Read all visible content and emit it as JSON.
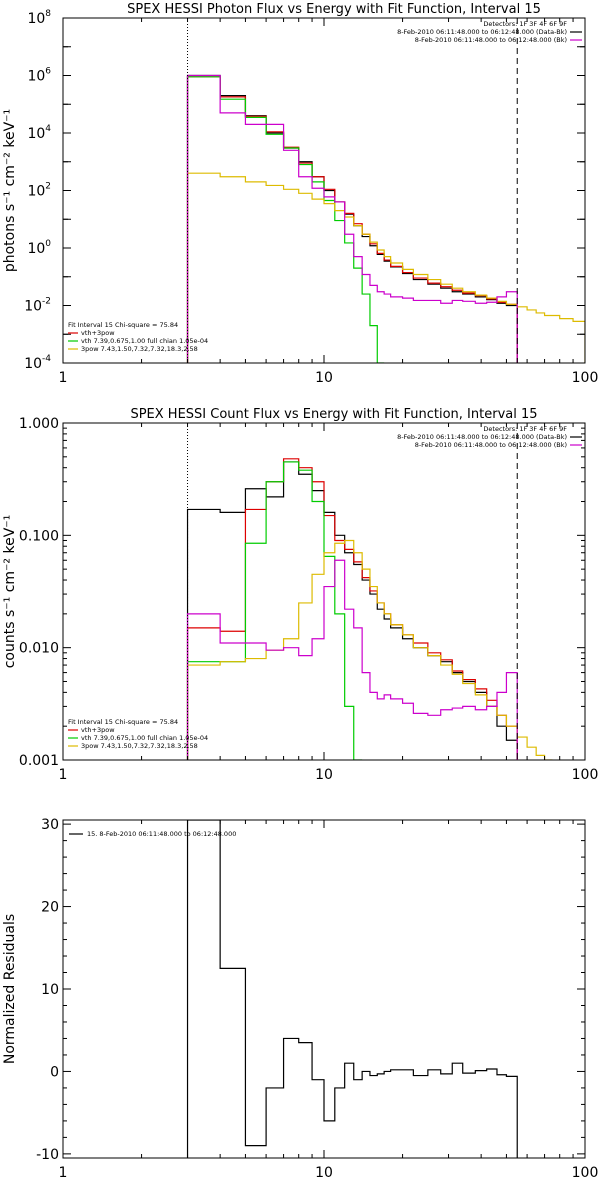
{
  "chart_data": [
    {
      "type": "line",
      "title": "SPEX HESSI Photon Flux vs Energy with Fit Function, Interval 15",
      "ylabel": "photons s⁻¹ cm⁻² keV⁻¹",
      "xlabel": "",
      "x_scale": "log",
      "y_scale": "log",
      "xlim": [
        1,
        100
      ],
      "ylim": [
        0.0001,
        100000000
      ],
      "x_ticks": [
        {
          "v": 1,
          "label": "1"
        },
        {
          "v": 10,
          "label": "10"
        },
        {
          "v": 100,
          "label": "100"
        }
      ],
      "y_ticks": [
        {
          "v": 0.0001,
          "label": "10",
          "exp": "-4"
        },
        {
          "v": 0.01,
          "label": "10",
          "exp": "-2"
        },
        {
          "v": 1,
          "label": "10",
          "exp": "0"
        },
        {
          "v": 100,
          "label": "10",
          "exp": "2"
        },
        {
          "v": 10000,
          "label": "10",
          "exp": "4"
        },
        {
          "v": 1000000,
          "label": "10",
          "exp": "6"
        },
        {
          "v": 100000000,
          "label": "10",
          "exp": "8"
        }
      ],
      "vlines": [
        {
          "x": 3.0,
          "style": "dotted"
        },
        {
          "x": 55,
          "style": "dashed"
        }
      ],
      "legend_top": [
        {
          "text": "Detectors: 1F 3F 4F 6F 9F",
          "color": ""
        },
        {
          "text": "8-Feb-2010 06:11:48.000 to 06:12:48.000 (Data-Bk)",
          "color": "#000000"
        },
        {
          "text": "8-Feb-2010 06:11:48.000 to 06:12:48.000 (Bk)",
          "color": "#cc00cc"
        }
      ],
      "legend_bottom": [
        {
          "text": "Fit Interval 15   Chi-square = 75.84",
          "color": ""
        },
        {
          "text": "vth+3pow",
          "color": "#dd0000"
        },
        {
          "text": "vth 7.39,0.675,1.00  full chian 1.05e-04",
          "color": "#00cc00"
        },
        {
          "text": "3pow 7.43,1.50,7.32,7.32,18.3,2.58",
          "color": "#ddbb00"
        }
      ],
      "series": [
        {
          "color": "#000000",
          "edges": [
            3,
            4,
            5,
            6,
            7,
            8,
            9,
            10,
            11,
            12,
            13,
            14,
            15,
            16,
            17,
            18,
            20,
            22,
            25,
            28,
            31,
            34,
            38,
            42,
            46,
            50,
            55
          ],
          "values": [
            1000000,
            200000,
            40000,
            10000,
            3000,
            1000,
            300,
            100,
            40,
            15,
            6,
            2.5,
            1.2,
            0.6,
            0.35,
            0.22,
            0.13,
            0.08,
            0.055,
            0.04,
            0.03,
            0.025,
            0.02,
            0.016,
            0.012,
            0.01
          ]
        },
        {
          "color": "#dd0000",
          "edges": [
            3,
            4,
            5,
            6,
            7,
            8,
            9,
            10,
            11,
            12,
            13,
            14,
            15,
            16,
            17,
            18,
            20,
            22,
            25,
            28,
            31,
            34,
            38,
            42,
            46,
            50,
            55
          ],
          "values": [
            900000,
            180000,
            38000,
            11000,
            3200,
            900,
            300,
            110,
            40,
            16,
            7,
            3,
            1.4,
            0.65,
            0.38,
            0.23,
            0.14,
            0.09,
            0.06,
            0.045,
            0.034,
            0.027,
            0.022,
            0.017,
            0.013,
            0.011
          ]
        },
        {
          "color": "#00cc00",
          "edges": [
            3,
            4,
            5,
            6,
            7,
            8,
            9,
            10,
            11,
            12,
            13,
            14,
            15,
            16,
            17
          ],
          "values": [
            900000,
            150000,
            35000,
            9000,
            3000,
            800,
            200,
            45,
            9,
            1.5,
            0.2,
            0.025,
            0.002,
            0.0001
          ]
        },
        {
          "color": "#ddbb00",
          "edges": [
            3,
            4,
            5,
            6,
            7,
            8,
            9,
            10,
            11,
            12,
            13,
            14,
            15,
            16,
            17,
            18,
            20,
            22,
            25,
            28,
            31,
            34,
            38,
            42,
            46,
            50,
            55,
            60,
            65,
            70,
            80,
            90,
            100
          ],
          "values": [
            400,
            300,
            200,
            150,
            110,
            80,
            50,
            35,
            20,
            12,
            6,
            3,
            1.6,
            0.85,
            0.5,
            0.3,
            0.18,
            0.12,
            0.08,
            0.055,
            0.04,
            0.03,
            0.023,
            0.018,
            0.014,
            0.011,
            0.009,
            0.007,
            0.0055,
            0.0045,
            0.0035,
            0.0028
          ]
        },
        {
          "color": "#cc00cc",
          "edges": [
            3,
            4,
            5,
            6,
            7,
            8,
            9,
            10,
            11,
            12,
            13,
            14,
            15,
            16,
            17,
            18,
            20,
            22,
            25,
            28,
            31,
            34,
            38,
            42,
            46,
            50,
            55
          ],
          "values": [
            1000000,
            50000,
            20000,
            20000,
            2500,
            300,
            120,
            60,
            40,
            3,
            0.5,
            0.12,
            0.05,
            0.03,
            0.025,
            0.02,
            0.018,
            0.015,
            0.015,
            0.012,
            0.015,
            0.014,
            0.012,
            0.013,
            0.02,
            0.03
          ]
        }
      ]
    },
    {
      "type": "line",
      "title": "SPEX HESSI Count Flux vs Energy with Fit Function, Interval 15",
      "ylabel": "counts s⁻¹ cm⁻² keV⁻¹",
      "xlabel": "",
      "x_scale": "log",
      "y_scale": "log",
      "xlim": [
        1,
        100
      ],
      "ylim": [
        0.001,
        1.0
      ],
      "x_ticks": [
        {
          "v": 1,
          "label": "1"
        },
        {
          "v": 10,
          "label": "10"
        },
        {
          "v": 100,
          "label": "100"
        }
      ],
      "y_ticks": [
        {
          "v": 0.001,
          "label": "0.001",
          "exp": ""
        },
        {
          "v": 0.01,
          "label": "0.010",
          "exp": ""
        },
        {
          "v": 0.1,
          "label": "0.100",
          "exp": ""
        },
        {
          "v": 1.0,
          "label": "1.000",
          "exp": ""
        }
      ],
      "vlines": [
        {
          "x": 3.0,
          "style": "dotted"
        },
        {
          "x": 55,
          "style": "dashed"
        }
      ],
      "legend_top": [
        {
          "text": "Detectors: 1F 3F 4F 6F 9F",
          "color": ""
        },
        {
          "text": "8-Feb-2010 06:11:48.000 to 06:12:48.000 (Data-Bk)",
          "color": "#000000"
        },
        {
          "text": "8-Feb-2010 06:11:48.000 to 06:12:48.000 (Bk)",
          "color": "#cc00cc"
        }
      ],
      "legend_bottom": [
        {
          "text": "Fit Interval 15   Chi-square = 75.84",
          "color": ""
        },
        {
          "text": "vth+3pow",
          "color": "#dd0000"
        },
        {
          "text": "vth 7.39,0.675,1.00  full chian 1.05e-04",
          "color": "#00cc00"
        },
        {
          "text": "3pow 7.43,1.50,7.32,7.32,18.3,2.58",
          "color": "#ddbb00"
        }
      ],
      "series": [
        {
          "color": "#000000",
          "edges": [
            3,
            4,
            5,
            6,
            7,
            8,
            9,
            10,
            11,
            12,
            13,
            14,
            15,
            16,
            17,
            18,
            20,
            22,
            25,
            28,
            31,
            34,
            38,
            42,
            46,
            50,
            55
          ],
          "values": [
            0.17,
            0.16,
            0.26,
            0.22,
            0.45,
            0.35,
            0.25,
            0.16,
            0.1,
            0.07,
            0.055,
            0.04,
            0.03,
            0.022,
            0.018,
            0.015,
            0.012,
            0.01,
            0.0085,
            0.0075,
            0.006,
            0.005,
            0.004,
            0.003,
            0.002,
            0.0015
          ]
        },
        {
          "color": "#dd0000",
          "edges": [
            3,
            4,
            5,
            6,
            7,
            8,
            9,
            10,
            11,
            12,
            13,
            14,
            15,
            16,
            17,
            18,
            20,
            22,
            25,
            28,
            31,
            34,
            38,
            42,
            46,
            50,
            55
          ],
          "values": [
            0.015,
            0.014,
            0.17,
            0.3,
            0.48,
            0.4,
            0.3,
            0.15,
            0.09,
            0.075,
            0.058,
            0.042,
            0.032,
            0.025,
            0.02,
            0.016,
            0.013,
            0.011,
            0.009,
            0.0078,
            0.0062,
            0.0052,
            0.0043,
            0.0034,
            0.0025,
            0.002
          ]
        },
        {
          "color": "#00cc00",
          "edges": [
            3,
            4,
            5,
            6,
            7,
            8,
            9,
            10,
            11,
            12,
            13,
            14
          ],
          "values": [
            0.0075,
            0.0075,
            0.085,
            0.3,
            0.45,
            0.38,
            0.2,
            0.065,
            0.02,
            0.003,
            0.001
          ]
        },
        {
          "color": "#ddbb00",
          "edges": [
            3,
            4,
            5,
            6,
            7,
            8,
            9,
            10,
            11,
            12,
            13,
            14,
            15,
            16,
            17,
            18,
            20,
            22,
            25,
            28,
            31,
            34,
            38,
            42,
            46,
            50,
            55,
            60,
            65,
            70,
            75
          ],
          "values": [
            0.007,
            0.0075,
            0.008,
            0.0095,
            0.012,
            0.025,
            0.045,
            0.07,
            0.085,
            0.09,
            0.07,
            0.05,
            0.035,
            0.025,
            0.02,
            0.016,
            0.013,
            0.01,
            0.0085,
            0.007,
            0.0058,
            0.0048,
            0.0038,
            0.003,
            0.0025,
            0.002,
            0.0016,
            0.0013,
            0.0011,
            0.001
          ]
        },
        {
          "color": "#cc00cc",
          "edges": [
            3,
            4,
            5,
            6,
            7,
            8,
            9,
            10,
            11,
            12,
            13,
            14,
            15,
            16,
            17,
            18,
            20,
            22,
            25,
            28,
            31,
            34,
            38,
            42,
            46,
            50,
            55
          ],
          "values": [
            0.02,
            0.011,
            0.011,
            0.0095,
            0.01,
            0.0085,
            0.012,
            0.035,
            0.06,
            0.022,
            0.015,
            0.006,
            0.004,
            0.0035,
            0.0038,
            0.0035,
            0.0032,
            0.0026,
            0.0025,
            0.0028,
            0.0029,
            0.003,
            0.0028,
            0.003,
            0.004,
            0.006
          ]
        }
      ]
    },
    {
      "type": "line",
      "title": "",
      "ylabel": "Normalized Residuals",
      "xlabel": "",
      "x_scale": "log",
      "y_scale": "linear",
      "xlim": [
        1,
        100
      ],
      "ylim": [
        -10.5,
        30.5
      ],
      "x_ticks": [
        {
          "v": 1,
          "label": "1"
        },
        {
          "v": 10,
          "label": "10"
        },
        {
          "v": 100,
          "label": "100"
        }
      ],
      "y_ticks": [
        {
          "v": -10,
          "label": "-10",
          "exp": ""
        },
        {
          "v": 0,
          "label": "0",
          "exp": ""
        },
        {
          "v": 10,
          "label": "10",
          "exp": ""
        },
        {
          "v": 20,
          "label": "20",
          "exp": ""
        },
        {
          "v": 30,
          "label": "30",
          "exp": ""
        }
      ],
      "vlines": [],
      "legend_top": [
        {
          "text": "15.  8-Feb-2010 06:11:48.000 to 06:12:48.000",
          "color": "#000000"
        }
      ],
      "legend_bottom": [],
      "series": [
        {
          "color": "#000000",
          "edges": [
            3,
            4,
            5,
            6,
            7,
            8,
            9,
            10,
            11,
            12,
            13,
            14,
            15,
            16,
            17,
            18,
            20,
            22,
            25,
            28,
            31,
            34,
            38,
            42,
            46,
            50,
            55
          ],
          "values": [
            30.5,
            12.5,
            -9,
            -2,
            4,
            3.5,
            -1,
            -6,
            -2,
            1,
            -1,
            0,
            -0.5,
            -0.3,
            0,
            0.2,
            0.2,
            -0.5,
            0.2,
            -0.3,
            1,
            -0.2,
            0.1,
            0.3,
            -0.4,
            -0.6
          ]
        }
      ]
    }
  ]
}
